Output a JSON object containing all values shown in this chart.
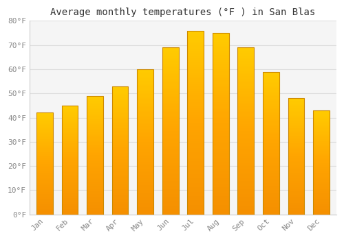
{
  "title": "Average monthly temperatures (°F ) in San Blas",
  "months": [
    "Jan",
    "Feb",
    "Mar",
    "Apr",
    "May",
    "Jun",
    "Jul",
    "Aug",
    "Sep",
    "Oct",
    "Nov",
    "Dec"
  ],
  "values": [
    42,
    45,
    49,
    53,
    60,
    69,
    76,
    75,
    69,
    59,
    48,
    43
  ],
  "bar_color_top": "#FFB733",
  "bar_color_mid": "#FFA500",
  "bar_color_bottom": "#F5A000",
  "bar_edge_color": "#CC8800",
  "background_color": "#FFFFFF",
  "plot_area_color": "#F5F5F5",
  "ylim": [
    0,
    80
  ],
  "ytick_step": 10,
  "title_fontsize": 10,
  "tick_fontsize": 8,
  "grid_color": "#DDDDDD",
  "bar_width": 0.65,
  "title_color": "#333333",
  "tick_color": "#888888"
}
